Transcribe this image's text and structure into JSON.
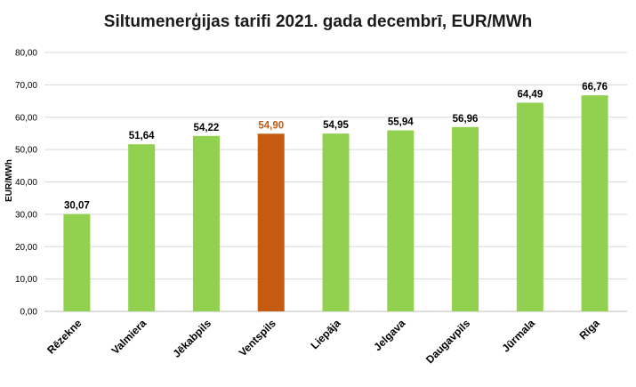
{
  "chart_data": {
    "type": "bar",
    "title": "Siltumenerģijas tarifi 2021. gada decembrī, EUR/MWh",
    "xlabel": "",
    "ylabel": "EUR/MWh",
    "ylim": [
      0,
      80
    ],
    "yticks": [
      "0,00",
      "10,00",
      "20,00",
      "30,00",
      "40,00",
      "50,00",
      "60,00",
      "70,00",
      "80,00"
    ],
    "grid": true,
    "legend": "none",
    "categories": [
      "Rēzekne",
      "Valmiera",
      "Jēkabpils",
      "Ventspils",
      "Liepāja",
      "Jelgava",
      "Daugavpils",
      "Jūrmala",
      "Rīga"
    ],
    "values": [
      30.07,
      51.64,
      54.22,
      54.9,
      54.95,
      55.94,
      56.96,
      64.49,
      66.76
    ],
    "value_labels": [
      "30,07",
      "51,64",
      "54,22",
      "54,90",
      "54,95",
      "55,94",
      "56,96",
      "64,49",
      "66,76"
    ],
    "highlight_index": 3,
    "colors": {
      "bar": "#92d050",
      "highlight": "#c55a11",
      "label": "#000000",
      "highlight_label": "#c55a11",
      "grid": "#d9d9d9"
    }
  }
}
